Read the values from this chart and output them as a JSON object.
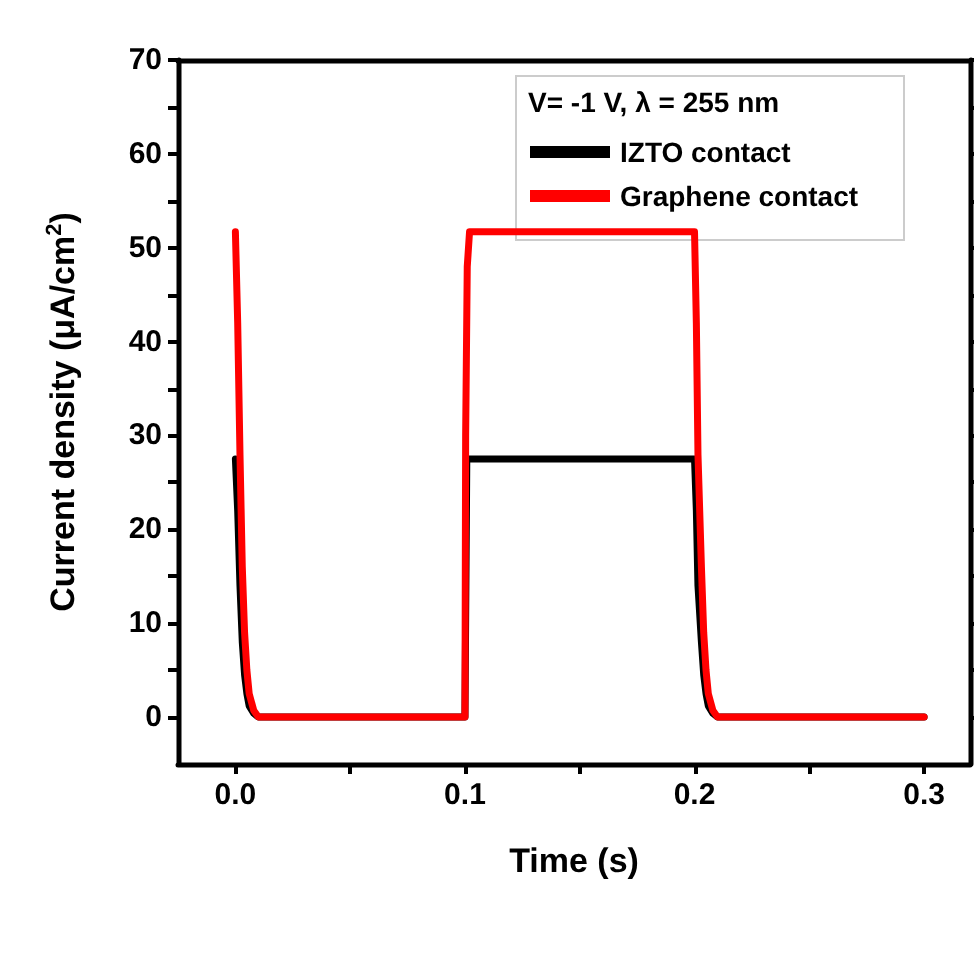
{
  "chart_data": {
    "type": "line",
    "xlabel": "Time (s)",
    "ylabel": "Current density (μA/cm$^{2}$)",
    "legend_title": "V= -1 V, λ = 255 nm",
    "xlim": [
      -0.025,
      0.32
    ],
    "xticks": [
      {
        "value": 0,
        "label": "0.0"
      },
      0.1,
      0.2,
      0.3
    ],
    "ylim": [
      -5,
      70
    ],
    "yticks": [
      0,
      10,
      20,
      30,
      40,
      50,
      60,
      70
    ],
    "grid": false,
    "legend": "top right",
    "marker": "none",
    "line_style": "solid",
    "series": [
      {
        "name": "IZTO contact",
        "color": "#000000",
        "x": [
          0,
          0.001,
          0.002,
          0.003,
          0.004,
          0.005,
          0.006,
          0.008,
          0.01,
          0.1,
          0.1008,
          0.2,
          0.2008,
          0.2015,
          0.203,
          0.204,
          0.205,
          0.206,
          0.208,
          0.21,
          0.3
        ],
        "values": [
          27.5,
          22,
          14,
          8,
          4.5,
          2.5,
          1.2,
          0.4,
          0,
          0,
          27.5,
          27.5,
          22,
          14,
          8,
          4.5,
          2.5,
          1.2,
          0.4,
          0,
          0
        ]
      },
      {
        "name": "Graphene contact",
        "color": "#ff0000",
        "x": [
          0,
          0.001,
          0.002,
          0.003,
          0.004,
          0.005,
          0.006,
          0.008,
          0.01,
          0.1,
          0.1003,
          0.101,
          0.102,
          0.2,
          0.2008,
          0.2015,
          0.203,
          0.204,
          0.205,
          0.206,
          0.208,
          0.21,
          0.3
        ],
        "values": [
          51.7,
          42,
          28,
          16,
          9,
          5,
          2.5,
          0.7,
          0,
          0,
          30,
          48,
          51.7,
          51.7,
          42,
          28,
          16,
          9,
          5,
          2.5,
          0.7,
          0,
          0
        ]
      }
    ]
  }
}
